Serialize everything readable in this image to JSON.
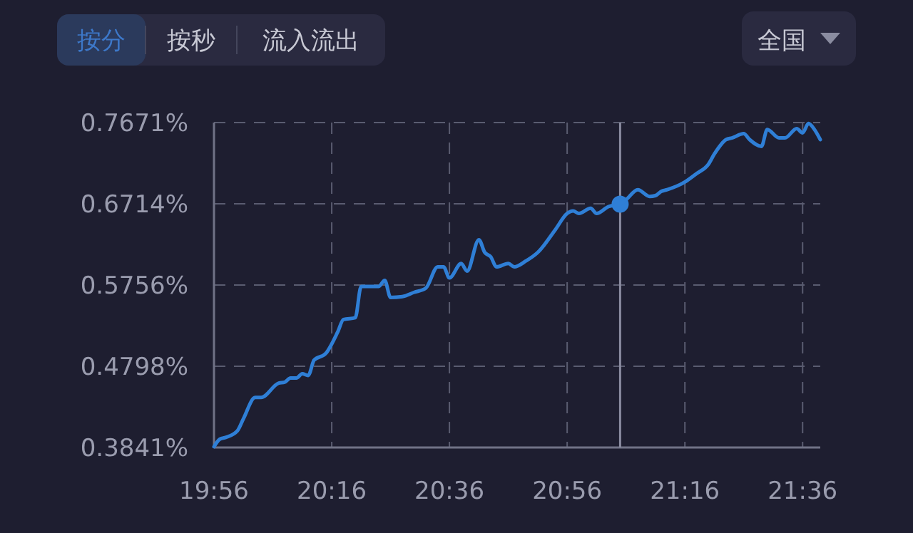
{
  "chart_data": {
    "type": "line",
    "annotations": [
      "按分",
      "按秒",
      "流入流出",
      "全国"
    ],
    "x": [
      19.9333,
      19.95,
      19.9667,
      20.0,
      20.0167,
      20.05,
      20.0667,
      20.1167,
      20.1333,
      20.15,
      20.1667,
      20.1833,
      20.2,
      20.2167,
      20.25,
      20.2833,
      20.3,
      20.3333,
      20.35,
      20.4,
      20.4167,
      20.4333,
      20.4667,
      20.5,
      20.5333,
      20.5667,
      20.5833,
      20.6,
      20.6333,
      20.65,
      20.6833,
      20.7,
      20.7167,
      20.7333,
      20.7667,
      20.7833,
      20.8167,
      20.85,
      20.9,
      20.9333,
      20.95,
      20.9667,
      21.0,
      21.0167,
      21.05,
      21.0833,
      21.1,
      21.1333,
      21.1667,
      21.1833,
      21.2,
      21.2167,
      21.2667,
      21.3,
      21.3333,
      21.35,
      21.3833,
      21.4,
      21.4333,
      21.45,
      21.4833,
      21.5,
      21.5333,
      21.55,
      21.5833,
      21.6,
      21.6167,
      21.6333,
      21.65
    ],
    "series": [
      {
        "color": "#2f7fd6",
        "values": [
          0.385,
          0.394,
          0.396,
          0.404,
          0.418,
          0.443,
          0.443,
          0.46,
          0.461,
          0.466,
          0.466,
          0.471,
          0.469,
          0.487,
          0.495,
          0.52,
          0.535,
          0.537,
          0.574,
          0.574,
          0.581,
          0.561,
          0.562,
          0.567,
          0.572,
          0.597,
          0.597,
          0.584,
          0.601,
          0.592,
          0.629,
          0.614,
          0.609,
          0.597,
          0.601,
          0.597,
          0.604,
          0.614,
          0.641,
          0.66,
          0.663,
          0.66,
          0.666,
          0.66,
          0.668,
          0.671,
          0.676,
          0.688,
          0.68,
          0.681,
          0.686,
          0.688,
          0.697,
          0.707,
          0.718,
          0.73,
          0.747,
          0.749,
          0.754,
          0.747,
          0.739,
          0.759,
          0.749,
          0.749,
          0.76,
          0.755,
          0.766,
          0.759,
          0.747
        ]
      }
    ],
    "xlim": [
      19.9333,
      21.65
    ],
    "xticks": [
      {
        "value": 19.9333,
        "label": "19:56"
      },
      {
        "value": 20.2667,
        "label": "20:16"
      },
      {
        "value": 20.6,
        "label": "20:36"
      },
      {
        "value": 20.9333,
        "label": "20:56"
      },
      {
        "value": 21.2667,
        "label": "21:16"
      },
      {
        "value": 21.6,
        "label": "21:36"
      }
    ],
    "ylim": [
      0.3841,
      0.7671
    ],
    "yticks": [
      {
        "value": 0.3841,
        "label": "0.3841%"
      },
      {
        "value": 0.4798,
        "label": "0.4798%"
      },
      {
        "value": 0.5756,
        "label": "0.5756%"
      },
      {
        "value": 0.6714,
        "label": "0.6714%"
      },
      {
        "value": 0.7671,
        "label": "0.7671%"
      }
    ],
    "ref_lines": [
      {
        "axis": "x",
        "value": 21.0833,
        "color": "#8a8ca0"
      }
    ],
    "grid": true,
    "marker": "none",
    "line_style": "solid"
  }
}
